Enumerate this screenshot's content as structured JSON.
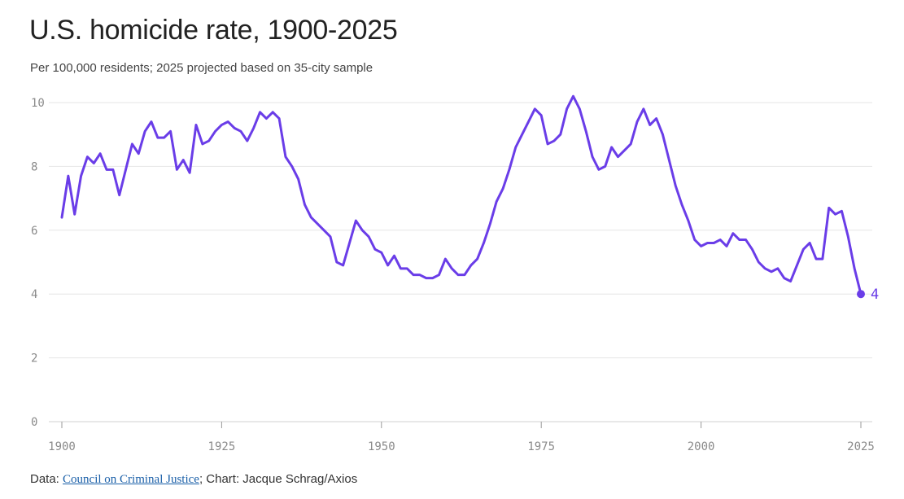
{
  "title": "U.S. homicide rate, 1900-2025",
  "subtitle": "Per 100,000 residents; 2025 projected based on 35-city sample",
  "footer": {
    "prefix": "Data: ",
    "source_link": "Council on Criminal Justice",
    "suffix": "; Chart: Jacque Schrag/Axios"
  },
  "colors": {
    "line": "#6a3de8",
    "grid": "#e6e6e6",
    "axis_text": "#8a8a8a"
  },
  "chart_data": {
    "type": "line",
    "title": "U.S. homicide rate, 1900-2025",
    "subtitle": "Per 100,000 residents; 2025 projected based on 35-city sample",
    "xlim": [
      1900,
      2025
    ],
    "ylim": [
      0,
      10
    ],
    "x_ticks": [
      1900,
      1925,
      1950,
      1975,
      2000,
      2025
    ],
    "y_ticks": [
      0,
      2,
      4,
      6,
      8,
      10
    ],
    "grid": "horizontal",
    "end_label": "4",
    "series": [
      {
        "x": [
          1900,
          1901,
          1902,
          1903,
          1904,
          1905,
          1906,
          1907,
          1908,
          1909,
          1910,
          1911,
          1912,
          1913,
          1914,
          1915,
          1916,
          1917,
          1918,
          1919,
          1920,
          1921,
          1922,
          1923,
          1924,
          1925,
          1926,
          1927,
          1928,
          1929,
          1930,
          1931,
          1932,
          1933,
          1934,
          1935,
          1936,
          1937,
          1938,
          1939,
          1940,
          1941,
          1942,
          1943,
          1944,
          1945,
          1946,
          1947,
          1948,
          1949,
          1950,
          1951,
          1952,
          1953,
          1954,
          1955,
          1956,
          1957,
          1958,
          1959,
          1960,
          1961,
          1962,
          1963,
          1964,
          1965,
          1966,
          1967,
          1968,
          1969,
          1970,
          1971,
          1972,
          1973,
          1974,
          1975,
          1976,
          1977,
          1978,
          1979,
          1980,
          1981,
          1982,
          1983,
          1984,
          1985,
          1986,
          1987,
          1988,
          1989,
          1990,
          1991,
          1992,
          1993,
          1994,
          1995,
          1996,
          1997,
          1998,
          1999,
          2000,
          2001,
          2002,
          2003,
          2004,
          2005,
          2006,
          2007,
          2008,
          2009,
          2010,
          2011,
          2012,
          2013,
          2014,
          2015,
          2016,
          2017,
          2018,
          2019,
          2020,
          2021,
          2022,
          2023,
          2024,
          2025
        ],
        "values": [
          6.4,
          7.7,
          6.5,
          7.7,
          8.3,
          8.1,
          8.4,
          7.9,
          7.9,
          7.1,
          7.9,
          8.7,
          8.4,
          9.1,
          9.4,
          8.9,
          8.9,
          9.1,
          7.9,
          8.2,
          7.8,
          9.3,
          8.7,
          8.8,
          9.1,
          9.3,
          9.4,
          9.2,
          9.1,
          8.8,
          9.2,
          9.7,
          9.5,
          9.7,
          9.5,
          8.3,
          8.0,
          7.6,
          6.8,
          6.4,
          6.2,
          6.0,
          5.8,
          5.0,
          4.9,
          5.6,
          6.3,
          6.0,
          5.8,
          5.4,
          5.3,
          4.9,
          5.2,
          4.8,
          4.8,
          4.6,
          4.6,
          4.5,
          4.5,
          4.6,
          5.1,
          4.8,
          4.6,
          4.6,
          4.9,
          5.1,
          5.6,
          6.2,
          6.9,
          7.3,
          7.9,
          8.6,
          9.0,
          9.4,
          9.8,
          9.6,
          8.7,
          8.8,
          9.0,
          9.8,
          10.2,
          9.8,
          9.1,
          8.3,
          7.9,
          8.0,
          8.6,
          8.3,
          8.5,
          8.7,
          9.4,
          9.8,
          9.3,
          9.5,
          9.0,
          8.2,
          7.4,
          6.8,
          6.3,
          5.7,
          5.5,
          5.6,
          5.6,
          5.7,
          5.5,
          5.9,
          5.7,
          5.7,
          5.4,
          5.0,
          4.8,
          4.7,
          4.8,
          4.5,
          4.4,
          4.9,
          5.4,
          5.6,
          5.1,
          5.1,
          6.7,
          6.5,
          6.6,
          5.8,
          4.8,
          4.0
        ]
      }
    ]
  }
}
